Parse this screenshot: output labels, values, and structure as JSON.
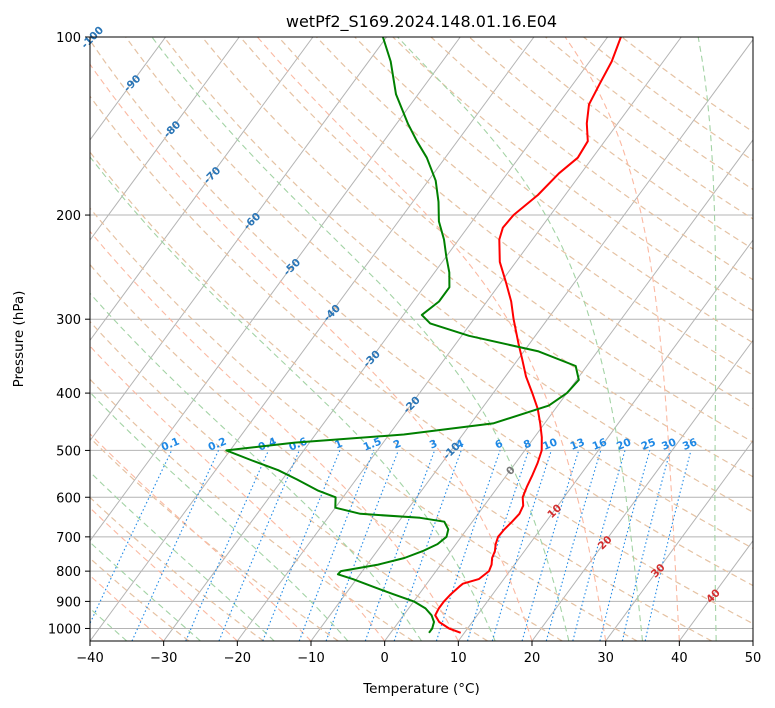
{
  "chart_data": {
    "type": "skew-t log-p",
    "title": "wetPf2_S169.2024.148.01.16.E04",
    "xlabel": "Temperature (°C)",
    "ylabel": "Pressure (hPa)",
    "xlim": [
      -40,
      50
    ],
    "ylim": [
      1050,
      100
    ],
    "x_ticks": [
      "−40",
      "−30",
      "−20",
      "−10",
      "0",
      "10",
      "20",
      "30",
      "40",
      "50"
    ],
    "y_ticks": [
      "100",
      "200",
      "300",
      "400",
      "500",
      "600",
      "700",
      "800",
      "900",
      "1000"
    ],
    "grid": true,
    "series": [
      {
        "kind": "temperature",
        "color": "#ff0000",
        "points": [
          [
            1017,
            9.5
          ],
          [
            1000,
            7.5
          ],
          [
            975,
            5.5
          ],
          [
            950,
            4.3
          ],
          [
            925,
            4.1
          ],
          [
            900,
            4.1
          ],
          [
            875,
            4.3
          ],
          [
            850,
            4.7
          ],
          [
            840,
            4.9
          ],
          [
            825,
            6.6
          ],
          [
            800,
            7.2
          ],
          [
            780,
            6.9
          ],
          [
            760,
            6.3
          ],
          [
            740,
            6.0
          ],
          [
            720,
            5.4
          ],
          [
            700,
            5.0
          ],
          [
            680,
            5.1
          ],
          [
            660,
            5.4
          ],
          [
            640,
            5.6
          ],
          [
            620,
            5.3
          ],
          [
            600,
            4.4
          ],
          [
            575,
            3.9
          ],
          [
            550,
            3.5
          ],
          [
            525,
            3.0
          ],
          [
            500,
            2.3
          ],
          [
            475,
            1.0
          ],
          [
            450,
            -0.6
          ],
          [
            425,
            -2.4
          ],
          [
            400,
            -4.7
          ],
          [
            375,
            -7.2
          ],
          [
            350,
            -9.5
          ],
          [
            330,
            -11.5
          ],
          [
            300,
            -14.6
          ],
          [
            280,
            -16.7
          ],
          [
            260,
            -19.3
          ],
          [
            240,
            -22.2
          ],
          [
            220,
            -24.5
          ],
          [
            210,
            -25.2
          ],
          [
            200,
            -25.0
          ],
          [
            185,
            -23.7
          ],
          [
            170,
            -23.0
          ],
          [
            160,
            -22.0
          ],
          [
            150,
            -22.3
          ],
          [
            140,
            -24.2
          ],
          [
            130,
            -25.8
          ],
          [
            120,
            -26.4
          ],
          [
            110,
            -27.0
          ],
          [
            100,
            -28.2
          ]
        ]
      },
      {
        "kind": "dewpoint",
        "color": "#008000",
        "points": [
          [
            1017,
            5.2
          ],
          [
            1000,
            5.2
          ],
          [
            975,
            4.8
          ],
          [
            950,
            3.8
          ],
          [
            925,
            2.3
          ],
          [
            900,
            0.0
          ],
          [
            875,
            -3.5
          ],
          [
            850,
            -7.0
          ],
          [
            825,
            -10.5
          ],
          [
            810,
            -13.0
          ],
          [
            800,
            -12.9
          ],
          [
            780,
            -8.5
          ],
          [
            760,
            -5.6
          ],
          [
            740,
            -3.8
          ],
          [
            720,
            -2.5
          ],
          [
            700,
            -2.0
          ],
          [
            680,
            -2.5
          ],
          [
            660,
            -3.8
          ],
          [
            650,
            -7.5
          ],
          [
            640,
            -16.0
          ],
          [
            625,
            -20.0
          ],
          [
            600,
            -21.0
          ],
          [
            585,
            -24.0
          ],
          [
            560,
            -28.0
          ],
          [
            540,
            -31.5
          ],
          [
            520,
            -36.0
          ],
          [
            500,
            -40.5
          ],
          [
            485,
            -32.0
          ],
          [
            470,
            -18.0
          ],
          [
            450,
            -7.0
          ],
          [
            420,
            -1.2
          ],
          [
            400,
            0.0
          ],
          [
            380,
            0.3
          ],
          [
            360,
            -1.5
          ],
          [
            340,
            -8.0
          ],
          [
            320,
            -19.0
          ],
          [
            305,
            -25.5
          ],
          [
            295,
            -27.5
          ],
          [
            280,
            -26.5
          ],
          [
            265,
            -26.5
          ],
          [
            250,
            -28.0
          ],
          [
            235,
            -30.0
          ],
          [
            220,
            -32.0
          ],
          [
            205,
            -34.5
          ],
          [
            190,
            -36.5
          ],
          [
            175,
            -39.0
          ],
          [
            160,
            -42.5
          ],
          [
            150,
            -45.5
          ],
          [
            140,
            -48.5
          ],
          [
            125,
            -53.0
          ],
          [
            110,
            -57.0
          ],
          [
            100,
            -60.5
          ]
        ]
      }
    ],
    "isotherm_labels": [
      "-100",
      "-90",
      "-80",
      "-70",
      "-60",
      "-50",
      "-40",
      "-30",
      "-20",
      "-10",
      "0",
      "10",
      "20",
      "30",
      "40"
    ],
    "mixing_ratio_labels": [
      "0.1",
      "0.2",
      "0.4",
      "0.6",
      "1",
      "1.5",
      "2",
      "3",
      "4",
      "6",
      "8",
      "10",
      "13",
      "16",
      "20",
      "25",
      "30",
      "36"
    ],
    "colors": {
      "dry_adiabat": "#e5c2a3",
      "moist_adiabat_a": "#fbb9a2",
      "moist_adiabat_b": "#a3d3a5",
      "isotherm": "#b4b4b4",
      "mixing_ratio": "#1e88e5",
      "isotherm_label_cold": "#2a75b6",
      "isotherm_label_warm": "#d32f2f",
      "isotherm_label_zero": "#777777"
    }
  }
}
